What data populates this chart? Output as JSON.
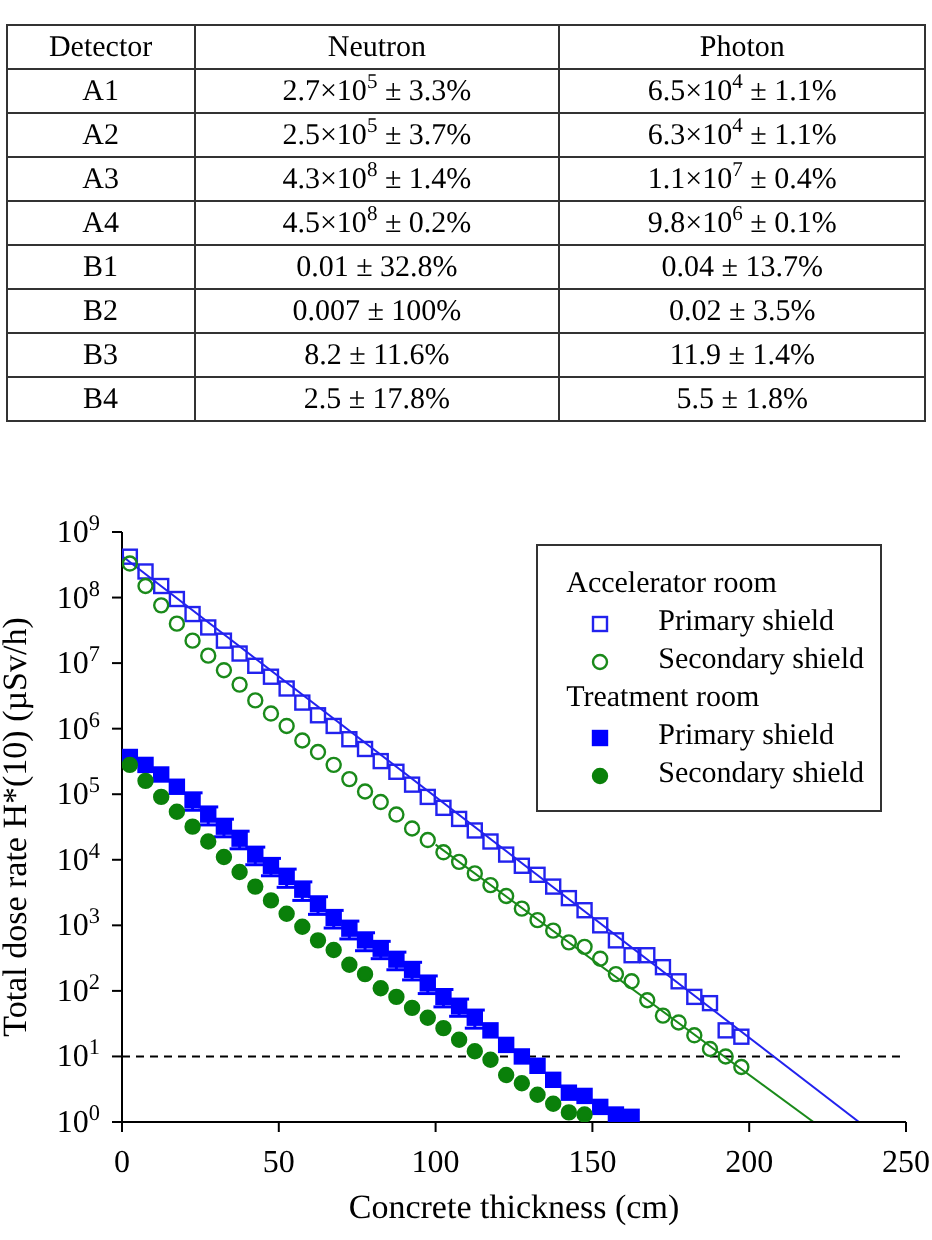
{
  "chart_data": [
    {
      "type": "other",
      "annotations": [
        "Detector",
        "Neutron",
        "Photon",
        "A1",
        "2.7×10$^{5}$ ± 3.3%",
        "6.5×10$^{4}$ ± 1.1%",
        "A2",
        "2.5×10$^{5}$ ± 3.7%",
        "6.3×10$^{4}$ ± 1.1%",
        "A3",
        "4.3×10$^{8}$ ± 1.4%",
        "1.1×10$^{7}$ ± 0.4%",
        "A4",
        "4.5×10$^{8}$ ± 0.2%",
        "9.8×10$^{6}$ ± 0.1%",
        "B1",
        "0.01 ± 32.8%",
        "0.04 ± 13.7%",
        "B2",
        "0.007 ± 100%",
        "0.02 ± 3.5%",
        "B3",
        "8.2 ± 11.6%",
        "11.9 ± 1.4%",
        "B4",
        "2.5 ± 17.8%",
        "5.5 ± 1.8%"
      ]
    },
    {
      "type": "scatter",
      "xlabel": "Concrete thickness (cm)",
      "ylabel": "Total dose rate H*(10) (µSv/h)",
      "xlim": [
        0,
        250
      ],
      "xticks": [
        0,
        50,
        100,
        150,
        200,
        250
      ],
      "ylim": [
        1,
        1000000000
      ],
      "yticks": [
        {
          "value": 1,
          "label": "10$^{0}$"
        },
        {
          "value": 10,
          "label": "10$^{1}$"
        },
        {
          "value": 100,
          "label": "10$^{2}$"
        },
        {
          "value": 1000,
          "label": "10$^{3}$"
        },
        {
          "value": 10000,
          "label": "10$^{4}$"
        },
        {
          "value": 100000,
          "label": "10$^{5}$"
        },
        {
          "value": 1000000,
          "label": "10$^{6}$"
        },
        {
          "value": 10000000,
          "label": "10$^{7}$"
        },
        {
          "value": 100000000,
          "label": "10$^{8}$"
        },
        {
          "value": 1000000000,
          "label": "10$^{9}$"
        }
      ],
      "log": "y",
      "grid": false,
      "legend": "top right",
      "annotations": [
        "Accelerator room",
        "Treatment room"
      ],
      "ref_lines": [
        {
          "axis": "y",
          "value": 10,
          "color": "#000000",
          "line_style": "dashed"
        }
      ],
      "series": [
        {
          "name": "Primary shield",
          "color": "#2222ee",
          "marker": "square",
          "x": [
            2.5,
            7.5,
            12.5,
            17.5,
            22.5,
            27.5,
            32.5,
            37.5,
            42.5,
            47.5,
            52.5,
            57.5,
            62.5,
            67.5,
            72.5,
            77.5,
            82.5,
            87.5,
            92.5,
            97.5,
            102.5,
            107.5,
            112.5,
            117.5,
            122.5,
            127.5,
            132.5,
            137.5,
            142.5,
            147.5,
            152.5,
            157.5,
            162.5,
            167.5,
            172.5,
            177.5,
            182.5,
            187.5,
            192.5,
            197.5
          ],
          "values": [
            420000000,
            250000000,
            150000000,
            95000000,
            56000000,
            35000000,
            22000000,
            14000000,
            9100000,
            6200000,
            4100000,
            2500000,
            1600000,
            1100000,
            690000,
            490000,
            320000,
            220000,
            140000,
            91000,
            62000,
            42000,
            28000,
            19000,
            12000,
            8100,
            5900,
            3900,
            2600,
            1700,
            1000,
            590,
            350,
            350,
            230,
            140,
            81,
            65,
            25,
            20
          ]
        },
        {
          "name": "Secondary shield",
          "color": "#1a8a1a",
          "marker": "circle",
          "x": [
            2.5,
            7.5,
            12.5,
            17.5,
            22.5,
            27.5,
            32.5,
            37.5,
            42.5,
            47.5,
            52.5,
            57.5,
            62.5,
            67.5,
            72.5,
            77.5,
            82.5,
            87.5,
            92.5,
            97.5,
            102.5,
            107.5,
            112.5,
            117.5,
            122.5,
            127.5,
            132.5,
            137.5,
            142.5,
            147.5,
            152.5,
            157.5,
            162.5,
            167.5,
            172.5,
            177.5,
            182.5,
            187.5,
            192.5,
            197.5
          ],
          "values": [
            330000000,
            150000000,
            76000000,
            40000000,
            22000000,
            13000000,
            7800000,
            4700000,
            2700000,
            1700000,
            1100000,
            660000,
            440000,
            280000,
            170000,
            110000,
            76000,
            49000,
            30000,
            20000,
            13000,
            9300,
            6200,
            4100,
            2800,
            1800,
            1200,
            830,
            550,
            470,
            310,
            180,
            140,
            72,
            42,
            33,
            21,
            13,
            10,
            6.9
          ]
        },
        {
          "name": "Primary shield",
          "color": "#0000ff",
          "marker": "square",
          "x": [
            2.5,
            7.5,
            12.5,
            17.5,
            22.5,
            27.5,
            32.5,
            37.5,
            42.5,
            47.5,
            52.5,
            57.5,
            62.5,
            67.5,
            72.5,
            77.5,
            82.5,
            87.5,
            92.5,
            97.5,
            102.5,
            107.5,
            112.5,
            117.5,
            122.5,
            127.5,
            132.5,
            137.5,
            142.5,
            147.5,
            152.5,
            157.5,
            162.5
          ],
          "values": [
            370000,
            280000,
            200000,
            130000,
            81000,
            49000,
            32000,
            21000,
            12000,
            8100,
            5500,
            3500,
            2100,
            1300,
            890,
            590,
            440,
            300,
            210,
            130,
            81,
            58,
            39,
            25,
            15,
            10,
            7.2,
            4.4,
            2.8,
            2.5,
            1.7,
            1.3,
            1.2
          ],
          "errors": [
            null,
            null,
            null,
            null,
            24000,
            15000,
            9600,
            6300,
            3600,
            2400,
            1700,
            1100,
            630,
            390,
            270,
            180,
            130,
            90,
            63,
            39,
            24,
            17,
            12,
            null,
            null,
            null,
            null,
            null,
            null,
            null,
            null,
            null,
            null
          ]
        },
        {
          "name": "Secondary shield",
          "color": "#0a800a",
          "marker": "circle",
          "x": [
            2.5,
            7.5,
            12.5,
            17.5,
            22.5,
            27.5,
            32.5,
            37.5,
            42.5,
            47.5,
            52.5,
            57.5,
            62.5,
            67.5,
            72.5,
            77.5,
            82.5,
            87.5,
            92.5,
            97.5,
            102.5,
            107.5,
            112.5,
            117.5,
            122.5,
            127.5,
            132.5,
            137.5,
            142.5,
            147.5
          ],
          "values": [
            280000,
            160000,
            91000,
            54000,
            32000,
            19000,
            11000,
            6500,
            3900,
            2400,
            1500,
            950,
            590,
            420,
            250,
            180,
            110,
            81,
            55,
            39,
            27,
            18,
            12,
            8.9,
            5.2,
            3.9,
            2.6,
            1.9,
            1.4,
            1.3
          ]
        },
        {
          "type": "line",
          "color": "#2222ee",
          "x": [
            0,
            235
          ],
          "values": [
            430000000,
            1
          ]
        },
        {
          "type": "line",
          "color": "#1a8a1a",
          "x": [
            100,
            220.5
          ],
          "values": [
            17000,
            1
          ]
        }
      ]
    }
  ]
}
